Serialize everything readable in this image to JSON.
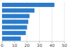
{
  "chart_data": {
    "type": "bar",
    "orientation": "horizontal",
    "categories": [
      null,
      null,
      null,
      null,
      null,
      null,
      null
    ],
    "values": [
      42,
      26,
      22,
      21,
      20,
      19,
      15
    ],
    "color": "#2b7bca",
    "xlim": [
      0,
      50
    ],
    "xticks": [
      0,
      10,
      20,
      30,
      40,
      50
    ],
    "grid": true,
    "tick_labels": "x"
  }
}
